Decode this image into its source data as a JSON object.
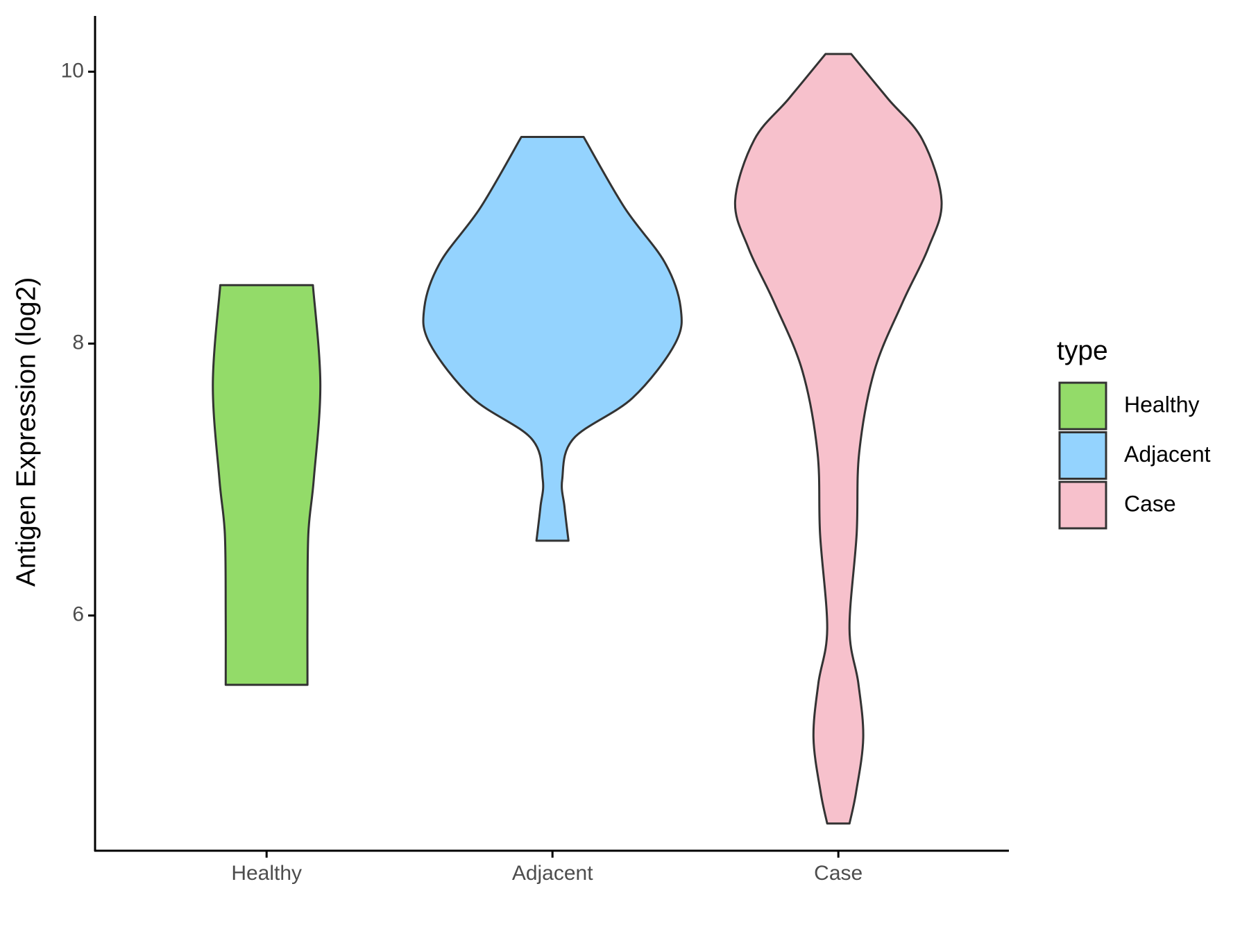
{
  "chart_data": {
    "type": "violin",
    "y_label": "Antigen Expression (log2)",
    "categories": [
      "Healthy",
      "Adjacent",
      "Case"
    ],
    "legend_title": "type",
    "ylim": [
      4.27,
      10.41
    ],
    "yticks": [
      6,
      8,
      10
    ],
    "series": [
      {
        "name": "Healthy",
        "color": "#93db69",
        "y": [
          8.43,
          7.7,
          7.0,
          6.6,
          6.0,
          5.49
        ],
        "widths": [
          0.162,
          0.188,
          0.165,
          0.146,
          0.143,
          0.143
        ]
      },
      {
        "name": "Adjacent",
        "color": "#94d3fe",
        "y": [
          9.52,
          9.0,
          8.6,
          8.27,
          8.0,
          7.6,
          7.3,
          7.0,
          6.8,
          6.55
        ],
        "widths": [
          0.109,
          0.252,
          0.392,
          0.448,
          0.429,
          0.28,
          0.073,
          0.034,
          0.042,
          0.056
        ]
      },
      {
        "name": "Case",
        "color": "#f7c1cc",
        "y": [
          10.13,
          9.8,
          9.5,
          9.05,
          8.7,
          8.3,
          7.8,
          7.2,
          6.6,
          5.9,
          5.5,
          5.1,
          4.7,
          4.47
        ],
        "widths": [
          0.045,
          0.174,
          0.294,
          0.361,
          0.314,
          0.224,
          0.126,
          0.073,
          0.064,
          0.039,
          0.07,
          0.087,
          0.062,
          0.039
        ]
      }
    ]
  }
}
